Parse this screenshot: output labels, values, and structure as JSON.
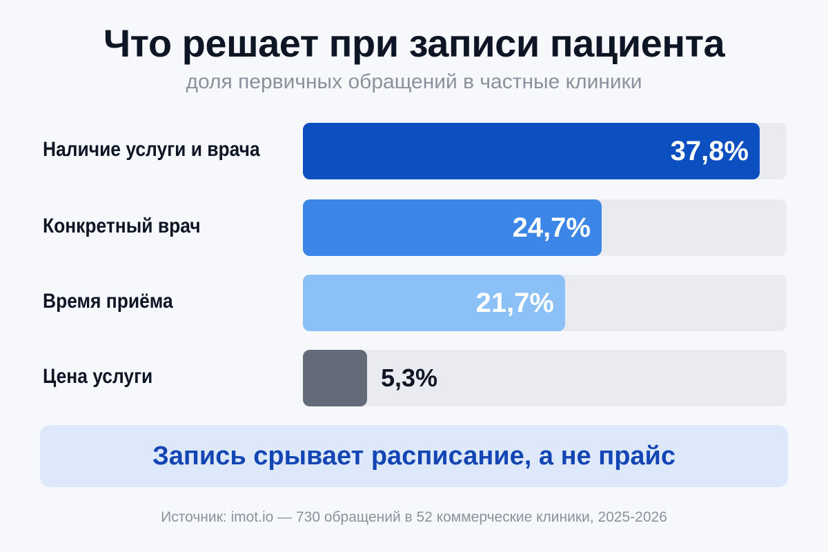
{
  "header": {
    "title": "Что решает при записи пациента",
    "subtitle": "доля первичных обращений в частные клиники"
  },
  "chart_data": {
    "type": "bar",
    "orientation": "horizontal",
    "categories": [
      "Наличие услуги и врача",
      "Конкретный врач",
      "Время приёма",
      "Цена услуги"
    ],
    "values": [
      37.8,
      24.7,
      21.7,
      5.3
    ],
    "value_labels": [
      "37,8%",
      "24,7%",
      "21,7%",
      "5,3%"
    ],
    "colors": [
      "#0b4fc0",
      "#3b86e6",
      "#8cc1f7",
      "#646b78"
    ],
    "track_color": "#e9ebf1",
    "xlim": [
      0,
      40
    ],
    "unit": "%",
    "grid": false,
    "legend": "none"
  },
  "callout": {
    "text": "Запись срывает расписание, а не прайс"
  },
  "footer": {
    "source": "Источник: imot.io — 730 обращений в 52 коммерческие клиники, 2025-2026"
  }
}
